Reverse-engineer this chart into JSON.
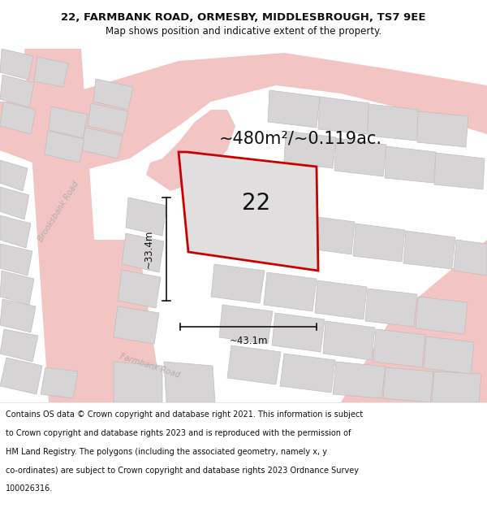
{
  "title_line1": "22, FARMBANK ROAD, ORMESBY, MIDDLESBROUGH, TS7 9EE",
  "title_line2": "Map shows position and indicative extent of the property.",
  "footer_lines": [
    "Contains OS data © Crown copyright and database right 2021. This information is subject",
    "to Crown copyright and database rights 2023 and is reproduced with the permission of",
    "HM Land Registry. The polygons (including the associated geometry, namely x, y",
    "co-ordinates) are subject to Crown copyright and database rights 2023 Ordnance Survey",
    "100026316."
  ],
  "area_label": "~480m²/~0.119ac.",
  "property_number": "22",
  "dim_height": "~33.4m",
  "dim_width": "~43.1m",
  "map_bg": "#eeecec",
  "road_color": "#f2c4c4",
  "road_color_light": "#f5d5d5",
  "building_fill": "#d6d4d4",
  "building_edge": "#c0bebe",
  "property_outline_color": "#cc0000",
  "property_fill": "#e0dede",
  "dim_line_color": "#111111",
  "title_fontsize": 9.5,
  "subtitle_fontsize": 8.5,
  "footer_fontsize": 7.0,
  "area_fontsize": 15,
  "number_fontsize": 20,
  "road_label_color": "#b0acac",
  "road_label_fontsize": 7
}
